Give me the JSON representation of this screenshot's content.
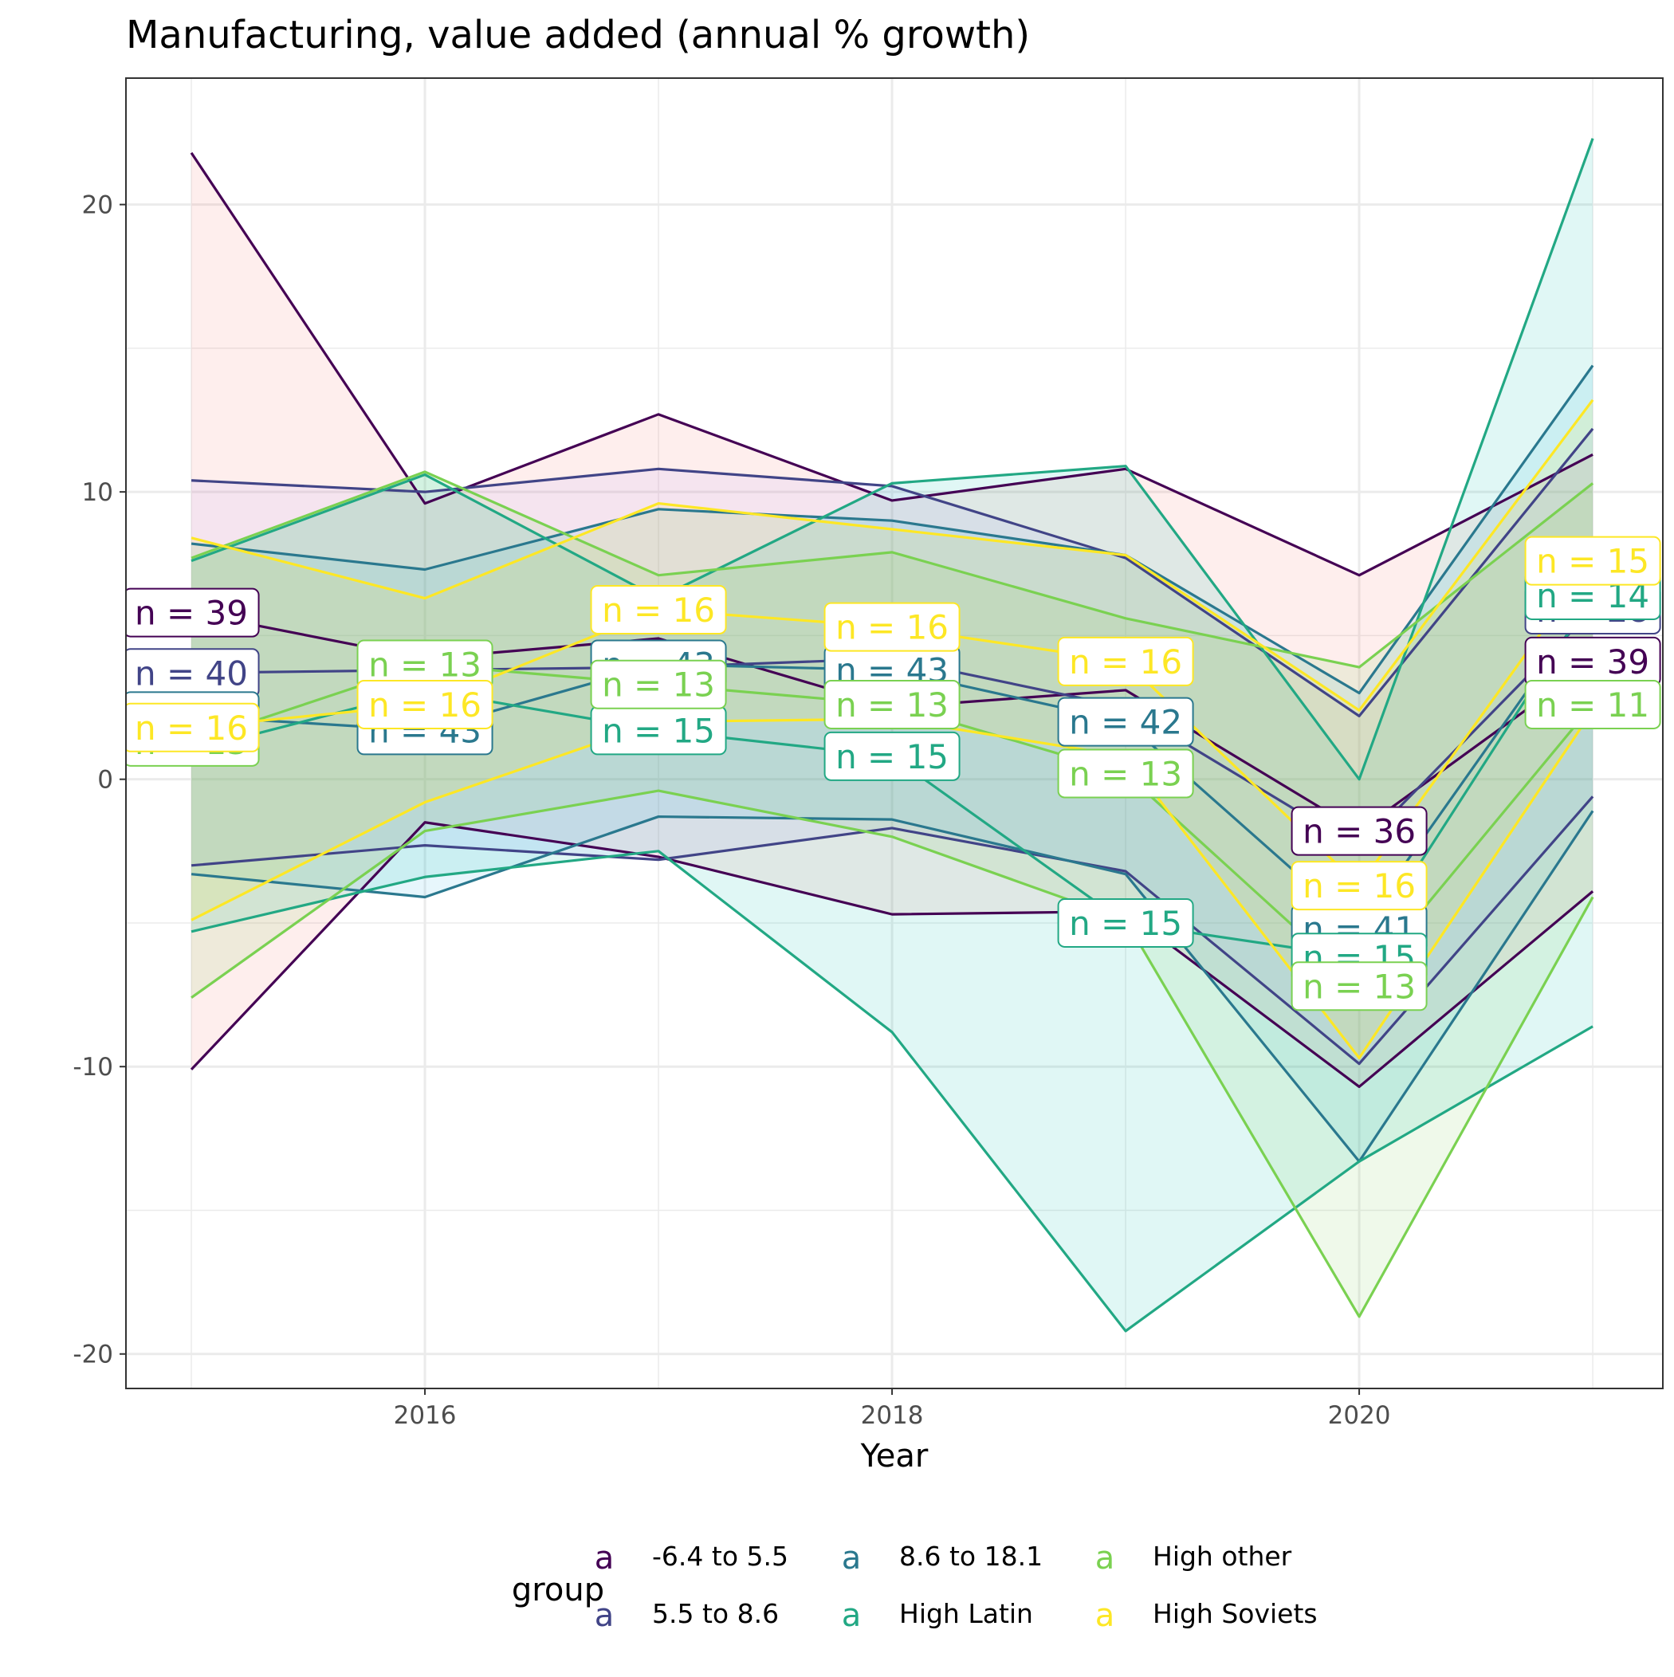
{
  "chart_data": {
    "type": "line",
    "title": "Manufacturing, value added (annual % growth)",
    "xlabel": "Year",
    "ylabel": "",
    "xlim": [
      2014.72,
      2021.3
    ],
    "ylim": [
      -21.2,
      24.4
    ],
    "x_ticks": [
      2016,
      2018,
      2020
    ],
    "y_ticks": [
      -20,
      -10,
      0,
      10,
      20
    ],
    "x": [
      2015,
      2016,
      2017,
      2018,
      2019,
      2020,
      2021
    ],
    "grid": true,
    "legend": {
      "title": "group",
      "position": "bottom",
      "key_glyph": "a"
    },
    "series": [
      {
        "name": "-6.4 to 5.5",
        "color": "#440154",
        "fill": "#F8766D",
        "upper": [
          21.8,
          9.6,
          12.7,
          9.7,
          10.8,
          7.1,
          11.3
        ],
        "mean": [
          5.8,
          4.2,
          4.9,
          2.5,
          3.1,
          -1.8,
          4.1
        ],
        "lower": [
          -10.1,
          -1.5,
          -2.7,
          -4.7,
          -4.6,
          -10.7,
          -3.9
        ],
        "labels": [
          "n = 39",
          "",
          "",
          "",
          "",
          "n = 36",
          "n = 39"
        ]
      },
      {
        "name": "5.5 to 8.6",
        "color": "#414487",
        "fill": "#B79FFF",
        "upper": [
          10.4,
          10.0,
          10.8,
          10.2,
          7.7,
          2.2,
          12.2
        ],
        "mean": [
          3.7,
          3.8,
          3.9,
          4.2,
          2.5,
          -2.4,
          5.9
        ],
        "lower": [
          -3.0,
          -2.3,
          -2.8,
          -1.7,
          -3.2,
          -9.9,
          -0.6
        ],
        "labels": [
          "n = 40",
          "",
          "",
          "",
          "",
          "",
          "n = 28"
        ]
      },
      {
        "name": "8.6 to 18.1",
        "color": "#2A788E",
        "fill": "#39B6E8",
        "upper": [
          8.2,
          7.3,
          9.4,
          9.0,
          7.8,
          3.0,
          14.4
        ],
        "mean": [
          2.2,
          1.7,
          4.0,
          3.8,
          2.0,
          -5.2,
          6.3
        ],
        "lower": [
          -3.3,
          -4.1,
          -1.3,
          -1.4,
          -3.3,
          -13.3,
          -1.1
        ],
        "labels": [
          "n = 43",
          "n = 43",
          "n = 43",
          "n = 43",
          "n = 42",
          "n = 41",
          ""
        ]
      },
      {
        "name": "High Latin",
        "color": "#22A884",
        "fill": "#00C1A9",
        "upper": [
          7.6,
          10.6,
          6.3,
          10.3,
          10.9,
          0.0,
          22.3
        ],
        "mean": [
          1.0,
          3.1,
          1.7,
          0.8,
          -5.0,
          -6.2,
          6.4
        ],
        "lower": [
          -5.3,
          -3.4,
          -2.5,
          -8.8,
          -19.2,
          -13.3,
          -8.6
        ],
        "labels": [
          "",
          "",
          "n = 15",
          "n = 15",
          "n = 15",
          "n = 15",
          "n = 14"
        ]
      },
      {
        "name": "High other",
        "color": "#7AD151",
        "fill": "#7AD151",
        "upper": [
          7.7,
          10.7,
          7.1,
          7.9,
          5.6,
          3.9,
          10.3
        ],
        "mean": [
          1.3,
          4.0,
          3.3,
          2.6,
          0.2,
          -7.2,
          2.6
        ],
        "lower": [
          -7.6,
          -1.8,
          -0.4,
          -2.0,
          -4.9,
          -18.7,
          -4.1
        ],
        "labels": [
          "n = 13",
          "n = 13",
          "n = 13",
          "n = 13",
          "n = 13",
          "n = 13",
          "n = 11"
        ]
      },
      {
        "name": "High Soviets",
        "color": "#FDE725",
        "fill": "#FDE725",
        "upper": [
          8.4,
          6.3,
          9.6,
          8.7,
          7.8,
          2.4,
          13.2
        ],
        "mean": [
          1.8,
          2.6,
          5.9,
          5.3,
          4.1,
          -3.7,
          7.6
        ],
        "lower": [
          -4.9,
          -0.8,
          2.0,
          2.1,
          0.8,
          -9.7,
          2.4
        ],
        "labels": [
          "n = 16",
          "n = 16",
          "n = 16",
          "n = 16",
          "n = 16",
          "n = 16",
          "n = 15"
        ]
      }
    ]
  }
}
